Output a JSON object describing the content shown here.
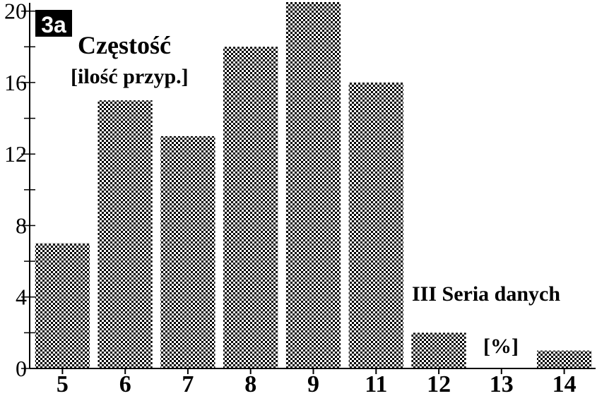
{
  "chart_data": {
    "type": "bar",
    "badge": "3a",
    "ylabel_line1": "Częstość",
    "ylabel_line2": "[ilość przyp.]",
    "xlabel_line1": "III Seria danych",
    "xlabel_line2": "[%]",
    "categories": [
      "5",
      "6",
      "7",
      "8",
      "9",
      "11",
      "12",
      "13",
      "14"
    ],
    "values": [
      7,
      15,
      13,
      18,
      20.5,
      16,
      2,
      0,
      1
    ],
    "ylim": [
      0,
      20.5
    ],
    "yticks": [
      0,
      4,
      8,
      12,
      16,
      20
    ],
    "yminor_step": 2,
    "grid": false,
    "bar_pattern": "checkerboard",
    "colors": {
      "bar_dark": "#000000",
      "bar_light": "#ffffff",
      "badge_bg": "#000000"
    }
  }
}
